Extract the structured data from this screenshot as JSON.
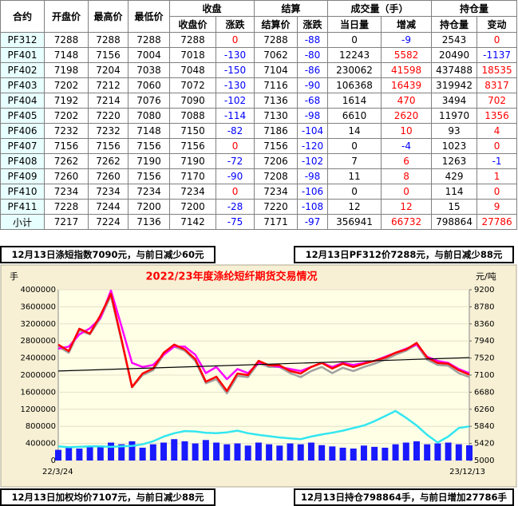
{
  "table": {
    "header_top": [
      "合约",
      "开盘价",
      "最高价",
      "最低价",
      "收盘",
      "结算",
      "成交量（手）",
      "持仓量"
    ],
    "header_sub": [
      "收盘价",
      "涨跌",
      "结算价",
      "涨跌",
      "当日量",
      "增减",
      "持仓量",
      "变动"
    ],
    "rows": [
      [
        "PF312",
        7288,
        7288,
        7288,
        7288,
        0,
        7288,
        -88,
        0,
        -9,
        2543,
        0
      ],
      [
        "PF401",
        7148,
        7156,
        7004,
        7018,
        -130,
        7062,
        -80,
        12243,
        5582,
        20490,
        -1137
      ],
      [
        "PF402",
        7198,
        7204,
        7038,
        7048,
        -150,
        7104,
        -86,
        230062,
        41598,
        437488,
        18535
      ],
      [
        "PF403",
        7202,
        7212,
        7060,
        7072,
        -130,
        7116,
        -90,
        106368,
        16439,
        319942,
        8317
      ],
      [
        "PF404",
        7192,
        7214,
        7076,
        7090,
        -102,
        7136,
        -68,
        1614,
        470,
        3494,
        702
      ],
      [
        "PF405",
        7202,
        7220,
        7080,
        7088,
        -114,
        7130,
        -98,
        6610,
        2620,
        11970,
        1356
      ],
      [
        "PF406",
        7232,
        7232,
        7148,
        7150,
        -82,
        7186,
        -104,
        14,
        10,
        93,
        4
      ],
      [
        "PF407",
        7156,
        7156,
        7156,
        7156,
        0,
        7156,
        -120,
        0,
        -4,
        1023,
        0
      ],
      [
        "PF408",
        7262,
        7262,
        7190,
        7190,
        -72,
        7206,
        -102,
        7,
        6,
        1263,
        -1
      ],
      [
        "PF409",
        7260,
        7260,
        7156,
        7170,
        -90,
        7208,
        -98,
        11,
        8,
        429,
        1
      ],
      [
        "PF410",
        7234,
        7234,
        7234,
        7234,
        0,
        7234,
        -106,
        0,
        0,
        114,
        0
      ],
      [
        "PF411",
        7228,
        7244,
        7200,
        7200,
        -28,
        7220,
        -108,
        12,
        12,
        15,
        9
      ],
      [
        "小计",
        7217,
        7224,
        7136,
        7142,
        -75,
        7171,
        -97,
        356941,
        66732,
        798864,
        27786
      ]
    ]
  },
  "notes": {
    "index_note": "12月13日涤短指数7090元，与前日减少60元",
    "pf312_note": "12月13日PF312价7288元，与前日减少88元",
    "avg_price_note": "12月13日加权均价7107元，与前日减少88元",
    "open_interest_note": "12月13日持仓798864手，与前日增加27786手"
  },
  "chart_data": {
    "type": "line",
    "title": "2022/23年度涤纶短纤期货交易情况",
    "y_label": "手",
    "y2_label": "元/吨",
    "categories": [
      "22/3/24",
      null,
      null,
      null,
      null,
      null,
      null,
      null,
      null,
      null,
      null,
      null,
      null,
      null,
      null,
      null,
      null,
      null,
      null,
      null,
      null,
      null,
      null,
      null,
      null,
      null,
      null,
      null,
      null,
      null,
      null,
      null,
      null,
      null,
      null,
      null,
      null,
      null,
      null,
      "23/12/13"
    ],
    "ylim": [
      0,
      4000000
    ],
    "yticks": [
      0,
      400000,
      800000,
      1200000,
      1600000,
      2000000,
      2400000,
      2800000,
      3200000,
      3600000,
      4000000
    ],
    "y2lim": [
      5000,
      9200
    ],
    "y2ticks": [
      5000,
      5420,
      5840,
      6260,
      6680,
      7100,
      7520,
      7940,
      8360,
      8780,
      9200
    ],
    "grid": true,
    "series": [
      {
        "type": "bar",
        "color": "#1a1aff",
        "axis": "y",
        "values": [
          250000,
          300000,
          280000,
          320000,
          350000,
          420000,
          380000,
          450000,
          300000,
          380000,
          420000,
          500000,
          450000,
          400000,
          480000,
          420000,
          380000,
          400000,
          350000,
          420000,
          380000,
          350000,
          400000,
          380000,
          420000,
          360000,
          330000,
          300000,
          280000,
          350000,
          320000,
          300000,
          380000,
          420000,
          450000,
          380000,
          400000,
          420000,
          380000,
          356941
        ]
      },
      {
        "type": "line",
        "color": "#33e6f0",
        "axis": "y",
        "values": [
          330000,
          310000,
          320000,
          330000,
          330000,
          320000,
          330000,
          340000,
          380000,
          450000,
          560000,
          640000,
          690000,
          680000,
          650000,
          640000,
          660000,
          700000,
          640000,
          600000,
          570000,
          540000,
          520000,
          500000,
          560000,
          610000,
          650000,
          700000,
          760000,
          820000,
          920000,
          1040000,
          1160000,
          1000000,
          820000,
          600000,
          420000,
          560000,
          760000,
          798864
        ]
      },
      {
        "type": "line",
        "color": "#a0a0a0",
        "axis": "y2",
        "values": [
          7800,
          7650,
          8200,
          8100,
          8500,
          9050,
          7950,
          6800,
          7100,
          7220,
          7600,
          7800,
          7700,
          7450,
          6900,
          7000,
          6650,
          7080,
          7050,
          7400,
          7300,
          7300,
          7150,
          7050,
          7200,
          7300,
          7150,
          7280,
          7200,
          7300,
          7380,
          7480,
          7600,
          7700,
          7850,
          7480,
          7350,
          7330,
          7150,
          7050
        ]
      },
      {
        "type": "line",
        "color": "#ff00ff",
        "axis": "y2",
        "values": [
          7750,
          7800,
          8100,
          8250,
          8500,
          9180,
          8300,
          7400,
          7300,
          7350,
          7600,
          7800,
          7800,
          7600,
          7150,
          7300,
          7000,
          7250,
          7150,
          7400,
          7350,
          7300,
          7250,
          7200,
          7300,
          7400,
          7300,
          7400,
          7350,
          7400,
          7450,
          7550,
          7650,
          7750,
          7850,
          7550,
          7450,
          7400,
          7250,
          7150
        ]
      },
      {
        "type": "line",
        "color": "#ff0000",
        "axis": "y2",
        "values": [
          7850,
          7690,
          8240,
          8120,
          8570,
          9100,
          7980,
          6810,
          7140,
          7260,
          7650,
          7850,
          7730,
          7490,
          6940,
          7060,
          6710,
          7140,
          7100,
          7450,
          7340,
          7340,
          7200,
          7140,
          7300,
          7400,
          7260,
          7380,
          7300,
          7380,
          7450,
          7530,
          7650,
          7730,
          7890,
          7530,
          7400,
          7380,
          7220,
          7110
        ]
      }
    ],
    "trend_line": {
      "color": "#000000",
      "axis": "y2",
      "values": [
        7200,
        7530
      ]
    }
  }
}
